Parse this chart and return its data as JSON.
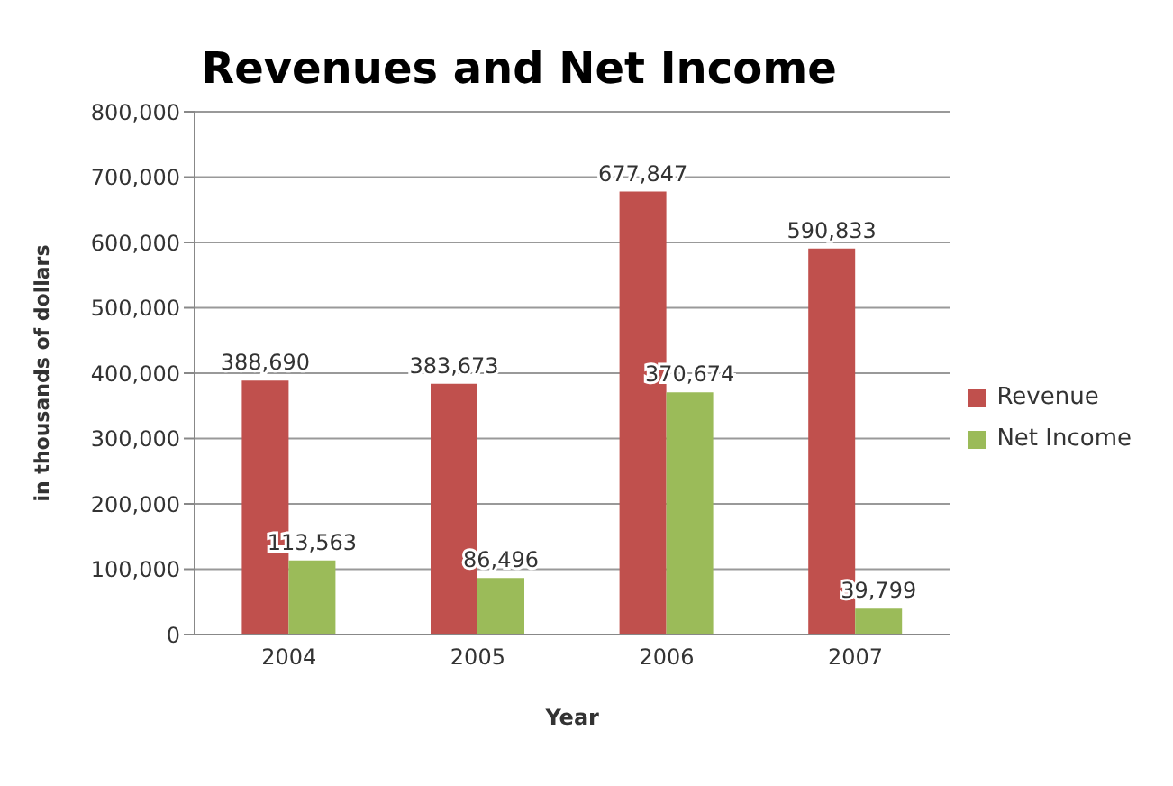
{
  "chart_data": {
    "type": "bar",
    "title": "Revenues and Net Income",
    "xlabel": "Year",
    "ylabel": "in thousands of dollars",
    "categories": [
      "2004",
      "2005",
      "2006",
      "2007"
    ],
    "series": [
      {
        "name": "Revenue",
        "color": "#c0504d",
        "values": [
          388690,
          383673,
          677847,
          590833
        ],
        "value_labels": [
          "388,690",
          "383,673",
          "677,847",
          "590,833"
        ]
      },
      {
        "name": "Net Income",
        "color": "#9bbb59",
        "values": [
          113563,
          86496,
          370674,
          39799
        ],
        "value_labels": [
          "113,563",
          "86,496",
          "370,674",
          "39,799"
        ]
      }
    ],
    "ylim": [
      0,
      800000
    ],
    "yticks": [
      {
        "value": 0,
        "label": "0"
      },
      {
        "value": 100000,
        "label": "100,000"
      },
      {
        "value": 200000,
        "label": "200,000"
      },
      {
        "value": 300000,
        "label": "300,000"
      },
      {
        "value": 400000,
        "label": "400,000"
      },
      {
        "value": 500000,
        "label": "500,000"
      },
      {
        "value": 600000,
        "label": "600,000"
      },
      {
        "value": 700000,
        "label": "700,000"
      },
      {
        "value": 800000,
        "label": "800,000"
      }
    ],
    "grid": "y",
    "legend": "right"
  }
}
